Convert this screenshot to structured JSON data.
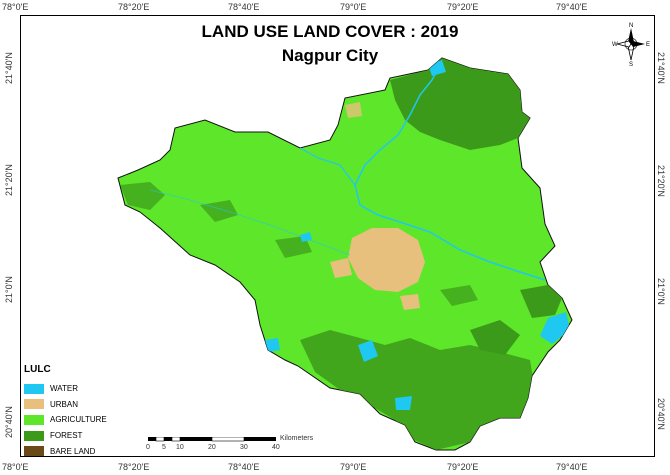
{
  "title": "LAND USE LAND COVER : 2019",
  "subtitle": "Nagpur City",
  "graticule": {
    "top_labels": [
      "78°0'E",
      "78°20'E",
      "78°40'E",
      "79°0'E",
      "79°20'E",
      "79°40'E"
    ],
    "bottom_labels": [
      "78°0'E",
      "78°20'E",
      "78°40'E",
      "79°0'E",
      "79°20'E",
      "79°40'E"
    ],
    "left_labels": [
      "21°40'N",
      "21°20'N",
      "21°0'N",
      "20°40'N"
    ],
    "right_labels": [
      "21°40'N",
      "21°20'N",
      "21°0'N",
      "20°40'N"
    ]
  },
  "legend": {
    "title": "LULC",
    "items": [
      {
        "label": "WATER",
        "color": "#1ec8f0"
      },
      {
        "label": "URBAN",
        "color": "#e8c07d"
      },
      {
        "label": "AGRICULTURE",
        "color": "#5ee62a"
      },
      {
        "label": "FOREST",
        "color": "#3c9a1a"
      },
      {
        "label": "BARE LAND",
        "color": "#6b4a1a"
      }
    ]
  },
  "scale": {
    "unit": "Kilometers",
    "ticks": [
      "0",
      "5",
      "10",
      "20",
      "30",
      "40"
    ]
  },
  "north_arrow": {
    "n": "N",
    "s": "S",
    "e": "E",
    "w": "W"
  },
  "colors": {
    "agriculture": "#5ee62a",
    "forest": "#3c9a1a",
    "urban": "#e8c07d",
    "water": "#1ec8f0"
  }
}
